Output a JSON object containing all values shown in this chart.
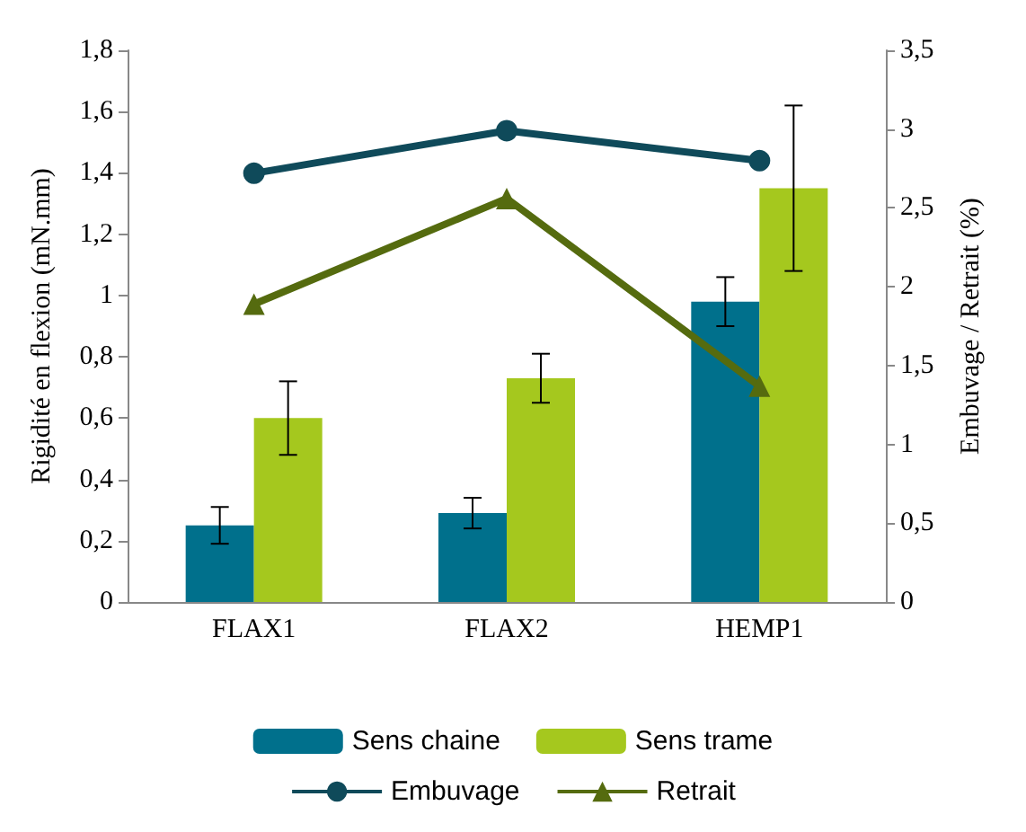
{
  "chart_data": {
    "type": "bar",
    "ylabel": "Rigidité en flexion (mN.mm)",
    "y2label": "Embuvage / Retrait (%)",
    "categories": [
      "FLAX1",
      "FLAX2",
      "HEMP1"
    ],
    "series": [
      {
        "name": "Sens chaine",
        "color": "#00708c",
        "values": [
          0.25,
          0.29,
          0.98
        ],
        "errors": [
          0.06,
          0.05,
          0.08
        ]
      },
      {
        "name": "Sens trame",
        "color": "#a5c81e",
        "values": [
          0.6,
          0.73,
          1.35
        ],
        "errors": [
          0.12,
          0.08,
          0.27
        ]
      },
      {
        "name": "Embuvage",
        "type": "line",
        "axis": "y2",
        "marker": "circle",
        "color": "#0f4a5a",
        "values": [
          2.72,
          2.99,
          2.8
        ]
      },
      {
        "name": "Retrait",
        "type": "line",
        "axis": "y2",
        "marker": "triangle",
        "color": "#556b0f",
        "values": [
          1.89,
          2.56,
          1.37
        ]
      }
    ],
    "ylim": [
      0,
      1.8
    ],
    "yticks": [
      0,
      {
        "value": 0.2,
        "label": "0,2"
      },
      {
        "value": 0.4,
        "label": "0,4"
      },
      {
        "value": 0.6,
        "label": "0,6"
      },
      {
        "value": 0.8,
        "label": "0,8"
      },
      1,
      {
        "value": 1.2,
        "label": "1,2"
      },
      {
        "value": 1.4,
        "label": "1,4"
      },
      {
        "value": 1.6,
        "label": "1,6"
      },
      {
        "value": 1.8,
        "label": "1,8"
      }
    ],
    "y2lim": [
      0,
      3.5
    ],
    "y2ticks": [
      0,
      {
        "value": 0.5,
        "label": "0,5"
      },
      1,
      {
        "value": 1.5,
        "label": "1,5"
      },
      2,
      {
        "value": 2.5,
        "label": "2,5"
      },
      3,
      {
        "value": 3.5,
        "label": "3,5"
      }
    ],
    "grid": false,
    "legend": "bottom"
  }
}
